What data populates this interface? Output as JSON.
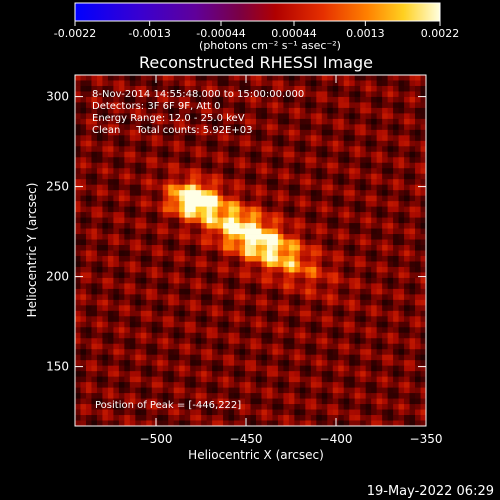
{
  "chart_data": {
    "type": "heatmap",
    "title": "Reconstructed RHESSI Image",
    "colorbar": {
      "ticks": [
        "-0.0022",
        "-0.0013",
        "-0.00044",
        "0.00044",
        "0.0013",
        "0.0022"
      ],
      "tick_values": [
        -0.0022,
        -0.0013,
        -0.00044,
        0.00044,
        0.0013,
        0.0022
      ],
      "range": [
        -0.0022,
        0.0022
      ],
      "units": "(photons cm⁻² s⁻¹ asec⁻²)"
    },
    "xlabel": "Heliocentric X (arcsec)",
    "ylabel": "Heliocentric Y (arcsec)",
    "xlim": [
      -545,
      -350
    ],
    "ylim": [
      117,
      312
    ],
    "x_ticks": [
      -500,
      -450,
      -400,
      -350
    ],
    "y_ticks": [
      150,
      200,
      250,
      300
    ],
    "annotations": [
      "8-Nov-2014 14:55:48.000 to 15:00:00.000",
      "Detectors: 3F 6F 9F, Att 0",
      "Energy Range: 12.0 - 25.0 keV",
      "Clean     Total counts: 5.92E+03"
    ],
    "peak_label": "Position of Peak = [-446,222]",
    "peak": {
      "x": -446,
      "y": 222
    },
    "colormap": "RHESSI hot (blue-purple-red-yellow-white)"
  },
  "timestamp": "19-May-2022 06:29"
}
